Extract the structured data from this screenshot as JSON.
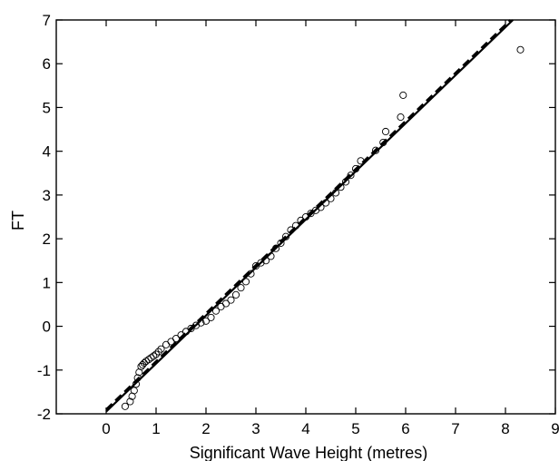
{
  "chart_data": {
    "type": "scatter",
    "title": "",
    "xlabel": "Significant Wave Height (metres)",
    "ylabel": "FT",
    "xlim": [
      -1,
      9
    ],
    "ylim": [
      -2,
      7
    ],
    "xticks": [
      "0",
      "1",
      "2",
      "3",
      "4",
      "5",
      "6",
      "7",
      "8",
      "9"
    ],
    "yticks": [
      "-2",
      "-1",
      "0",
      "1",
      "2",
      "3",
      "4",
      "5",
      "6",
      "7"
    ],
    "grid": false,
    "legend": "none",
    "series": [
      {
        "type": "scatter",
        "marker": "open-circle",
        "x": [
          0.38,
          0.48,
          0.52,
          0.56,
          0.6,
          0.63,
          0.66,
          0.7,
          0.73,
          0.76,
          0.8,
          0.85,
          0.9,
          0.95,
          1.0,
          1.05,
          1.1,
          1.2,
          1.3,
          1.4,
          1.5,
          1.6,
          1.7,
          1.8,
          1.9,
          2.0,
          2.1,
          2.2,
          2.3,
          2.4,
          2.5,
          2.6,
          2.7,
          2.8,
          2.9,
          3.0,
          3.1,
          3.2,
          3.3,
          3.4,
          3.5,
          3.6,
          3.7,
          3.8,
          3.9,
          4.0,
          4.1,
          4.2,
          4.3,
          4.4,
          4.5,
          4.6,
          4.7,
          4.8,
          4.9,
          5.0,
          5.1,
          5.4,
          5.55,
          5.6,
          5.9,
          5.95,
          8.3
        ],
        "y": [
          -1.83,
          -1.72,
          -1.6,
          -1.47,
          -1.32,
          -1.18,
          -1.05,
          -0.92,
          -0.88,
          -0.84,
          -0.8,
          -0.76,
          -0.72,
          -0.68,
          -0.64,
          -0.58,
          -0.52,
          -0.42,
          -0.35,
          -0.28,
          -0.2,
          -0.12,
          -0.05,
          0.02,
          0.08,
          0.12,
          0.2,
          0.35,
          0.45,
          0.52,
          0.6,
          0.72,
          0.88,
          1.02,
          1.2,
          1.38,
          1.45,
          1.5,
          1.6,
          1.78,
          1.9,
          2.05,
          2.2,
          2.3,
          2.42,
          2.5,
          2.58,
          2.65,
          2.72,
          2.82,
          2.92,
          3.05,
          3.18,
          3.3,
          3.45,
          3.6,
          3.78,
          4.02,
          4.2,
          4.45,
          4.78,
          5.28,
          6.32
        ]
      },
      {
        "type": "line",
        "style": "solid",
        "x": [
          0.0,
          8.15
        ],
        "y": [
          -1.95,
          7.0
        ]
      },
      {
        "type": "line",
        "style": "dashed",
        "x": [
          0.0,
          8.1
        ],
        "y": [
          -1.9,
          7.0
        ]
      }
    ]
  }
}
